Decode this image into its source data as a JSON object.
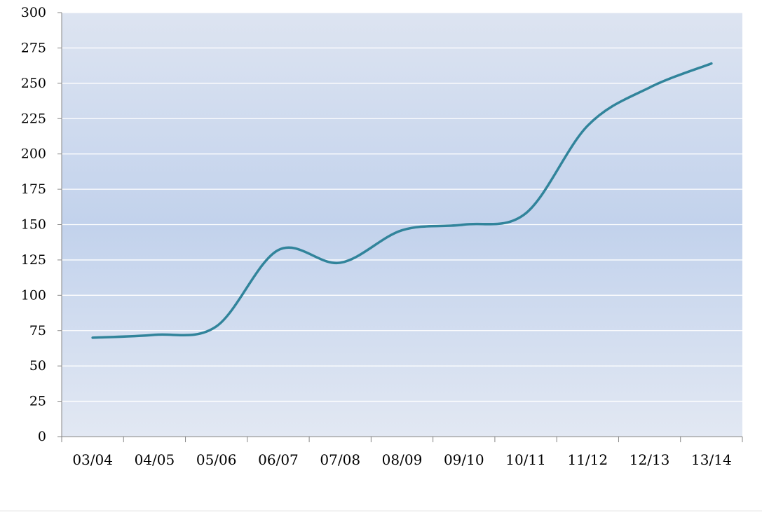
{
  "chart_data": {
    "type": "line",
    "title": "",
    "xlabel": "",
    "ylabel": "",
    "categories": [
      "03/04",
      "04/05",
      "05/06",
      "06/07",
      "07/08",
      "08/09",
      "09/10",
      "10/11",
      "11/12",
      "12/13",
      "13/14"
    ],
    "series": [
      {
        "values": [
          70,
          72,
          78,
          132,
          123,
          146,
          150,
          158,
          220,
          247,
          264
        ]
      }
    ],
    "ylim": [
      0,
      300
    ],
    "yticks": [
      0,
      25,
      50,
      75,
      100,
      125,
      150,
      175,
      200,
      225,
      250,
      275,
      300
    ],
    "grid": true,
    "legend": "none",
    "colors": {
      "line": "#31849b",
      "plot_bg_edge": "#dde4f1",
      "plot_bg_mid": "#c2d2ec",
      "gridline": "#ffffff",
      "axis": "#868686"
    }
  }
}
